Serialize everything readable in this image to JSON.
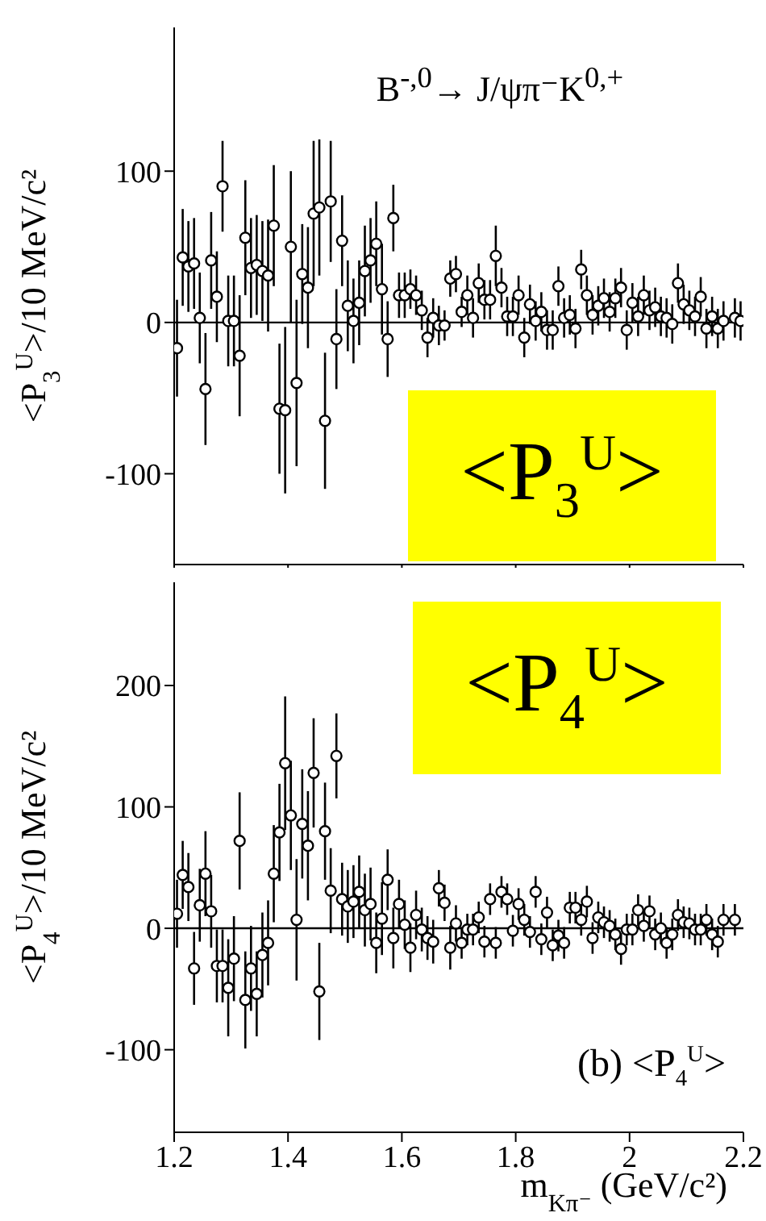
{
  "chart_data": [
    {
      "type": "scatter",
      "title": "B$^{-,0}$→ J/ψπ⁻K$^{0,+}$",
      "ylabel": "<P$_{3}$$^{U}$>/10 MeV/c²",
      "annotations": [
        "<P$_{3}$$^{U}$>"
      ],
      "x": [
        1.205,
        1.215,
        1.225,
        1.235,
        1.245,
        1.255,
        1.265,
        1.275,
        1.285,
        1.295,
        1.305,
        1.315,
        1.325,
        1.335,
        1.345,
        1.355,
        1.365,
        1.375,
        1.385,
        1.395,
        1.405,
        1.415,
        1.425,
        1.435,
        1.445,
        1.455,
        1.465,
        1.475,
        1.485,
        1.495,
        1.505,
        1.515,
        1.525,
        1.535,
        1.545,
        1.555,
        1.565,
        1.575,
        1.585,
        1.595,
        1.605,
        1.615,
        1.625,
        1.635,
        1.645,
        1.655,
        1.665,
        1.675,
        1.685,
        1.695,
        1.705,
        1.715,
        1.725,
        1.735,
        1.745,
        1.755,
        1.765,
        1.775,
        1.785,
        1.795,
        1.805,
        1.815,
        1.825,
        1.835,
        1.845,
        1.855,
        1.865,
        1.875,
        1.885,
        1.895,
        1.905,
        1.915,
        1.925,
        1.935,
        1.945,
        1.955,
        1.965,
        1.975,
        1.985,
        1.995,
        2.005,
        2.015,
        2.025,
        2.035,
        2.045,
        2.055,
        2.065,
        2.075,
        2.085,
        2.095,
        2.105,
        2.115,
        2.125,
        2.135,
        2.145,
        2.155,
        2.165,
        2.185,
        2.195
      ],
      "series": [
        {
          "color": "#000000",
          "values": [
            -17,
            43,
            37,
            39,
            3,
            -44,
            41,
            17,
            90,
            1,
            1,
            -22,
            56,
            36,
            38,
            34,
            31,
            64,
            -57,
            -58,
            50,
            -40,
            32,
            23,
            72,
            76,
            -65,
            80,
            -11,
            54,
            11,
            1,
            13,
            34,
            41,
            52,
            22,
            -11,
            69,
            18,
            18,
            22,
            18,
            8,
            -10,
            3,
            -2,
            -2,
            29,
            32,
            7,
            18,
            3,
            26,
            15,
            15,
            44,
            23,
            4,
            4,
            18,
            -10,
            12,
            1,
            7,
            -5,
            -5,
            24,
            3,
            5,
            -4,
            35,
            18,
            5,
            11,
            16,
            7,
            16,
            23,
            -5,
            13,
            4,
            18,
            8,
            10,
            4,
            3,
            -1,
            26,
            12,
            8,
            4,
            17,
            -4,
            4,
            -4,
            1,
            3,
            1
          ],
          "errors": [
            32,
            32,
            30,
            30,
            30,
            37,
            32,
            30,
            30,
            30,
            30,
            40,
            38,
            33,
            33,
            33,
            37,
            40,
            43,
            55,
            50,
            55,
            33,
            40,
            48,
            45,
            45,
            40,
            33,
            30,
            30,
            28,
            28,
            30,
            28,
            28,
            30,
            25,
            22,
            15,
            15,
            13,
            13,
            13,
            13,
            13,
            13,
            10,
            12,
            12,
            10,
            13,
            13,
            13,
            13,
            13,
            20,
            13,
            13,
            13,
            13,
            13,
            13,
            13,
            13,
            13,
            13,
            13,
            13,
            13,
            13,
            13,
            13,
            13,
            13,
            13,
            13,
            13,
            13,
            13,
            13,
            13,
            13,
            13,
            13,
            13,
            13,
            13,
            13,
            13,
            13,
            13,
            13,
            13,
            13,
            13,
            13,
            13,
            13
          ]
        }
      ],
      "xlim": [
        1.2,
        2.2
      ],
      "xticks": [
        1.2,
        1.4,
        1.6,
        1.8,
        2,
        2.2
      ],
      "ylim": [
        -160,
        195
      ],
      "yticks": [
        -100,
        0,
        100
      ],
      "tick_labels": "y",
      "marker": "circle",
      "ref_lines": [
        {
          "axis": "y",
          "value": 0
        }
      ]
    },
    {
      "type": "scatter",
      "xlabel": "m$_{Kπ⁻}$ (GeV/c²)",
      "ylabel": "<P$_{4}$$^{U}$>/10 MeV/c²",
      "annotations": [
        "<P$_{4}$$^{U}$>",
        "(b) <P$_{4}$$^{U}$>"
      ],
      "x": [
        1.205,
        1.215,
        1.225,
        1.235,
        1.245,
        1.255,
        1.265,
        1.275,
        1.285,
        1.295,
        1.305,
        1.315,
        1.325,
        1.335,
        1.345,
        1.355,
        1.365,
        1.375,
        1.385,
        1.395,
        1.405,
        1.415,
        1.425,
        1.435,
        1.445,
        1.455,
        1.465,
        1.475,
        1.485,
        1.495,
        1.505,
        1.515,
        1.525,
        1.535,
        1.545,
        1.555,
        1.565,
        1.575,
        1.585,
        1.595,
        1.605,
        1.615,
        1.625,
        1.635,
        1.645,
        1.655,
        1.665,
        1.675,
        1.685,
        1.695,
        1.705,
        1.715,
        1.725,
        1.735,
        1.745,
        1.755,
        1.765,
        1.775,
        1.785,
        1.795,
        1.805,
        1.815,
        1.825,
        1.835,
        1.845,
        1.855,
        1.865,
        1.875,
        1.885,
        1.895,
        1.905,
        1.915,
        1.925,
        1.935,
        1.945,
        1.955,
        1.965,
        1.975,
        1.985,
        1.995,
        2.005,
        2.015,
        2.025,
        2.035,
        2.045,
        2.055,
        2.065,
        2.075,
        2.085,
        2.095,
        2.105,
        2.115,
        2.125,
        2.135,
        2.145,
        2.155,
        2.165,
        2.185
      ],
      "series": [
        {
          "color": "#000000",
          "values": [
            12,
            44,
            34,
            -33,
            19,
            45,
            14,
            -31,
            -31,
            -49,
            -25,
            72,
            -59,
            -33,
            -54,
            -22,
            -12,
            45,
            79,
            136,
            93,
            7,
            86,
            68,
            128,
            -52,
            80,
            31,
            142,
            24,
            18,
            22,
            30,
            15,
            20,
            -12,
            8,
            40,
            -8,
            20,
            3,
            -16,
            11,
            -1,
            -8,
            -11,
            33,
            21,
            -16,
            4,
            -12,
            -1,
            -1,
            9,
            -11,
            24,
            -12,
            30,
            24,
            -2,
            20,
            7,
            -3,
            30,
            -9,
            13,
            -14,
            -6,
            -12,
            17,
            17,
            7,
            22,
            -8,
            9,
            5,
            2,
            -5,
            -17,
            -1,
            -1,
            15,
            2,
            14,
            -5,
            0,
            -12,
            -5,
            11,
            5,
            4,
            -1,
            -1,
            7,
            -5,
            -11,
            7,
            7
          ],
          "errors": [
            28,
            28,
            28,
            30,
            30,
            35,
            30,
            30,
            30,
            40,
            35,
            40,
            40,
            35,
            35,
            35,
            35,
            40,
            40,
            55,
            45,
            50,
            45,
            45,
            45,
            40,
            40,
            35,
            35,
            30,
            30,
            30,
            30,
            30,
            30,
            25,
            30,
            25,
            25,
            20,
            20,
            20,
            20,
            18,
            18,
            18,
            15,
            15,
            18,
            15,
            13,
            13,
            13,
            13,
            13,
            13,
            13,
            13,
            13,
            13,
            13,
            13,
            13,
            13,
            13,
            13,
            13,
            13,
            13,
            13,
            13,
            13,
            13,
            13,
            13,
            13,
            13,
            13,
            13,
            13,
            13,
            13,
            13,
            13,
            13,
            13,
            13,
            13,
            13,
            13,
            13,
            13,
            13,
            13,
            13,
            13,
            13,
            13
          ]
        }
      ],
      "xlim": [
        1.2,
        2.2
      ],
      "xticks": [
        1.2,
        1.4,
        1.6,
        1.8,
        2,
        2.2
      ],
      "ylim": [
        -168,
        285
      ],
      "yticks": [
        -100,
        0,
        100,
        200
      ],
      "marker": "circle",
      "ref_lines": [
        {
          "axis": "y",
          "value": 0
        }
      ]
    }
  ]
}
